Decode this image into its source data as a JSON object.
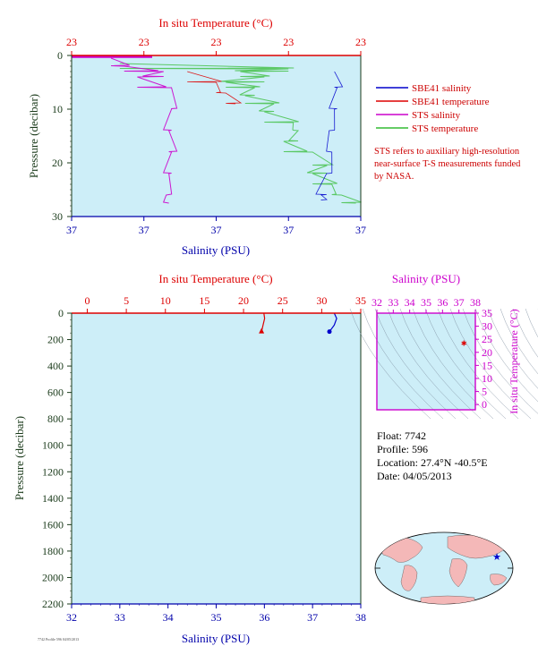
{
  "top_panel": {
    "temp_axis_title": "In situ Temperature (°C)",
    "temp_ticks": [
      "23",
      "23",
      "23",
      "23",
      "23"
    ],
    "sal_axis_title": "Salinity (PSU)",
    "sal_ticks": [
      "37",
      "37",
      "37",
      "37",
      "37"
    ],
    "pressure_axis_title": "Pressure (decibar)",
    "pressure_ticks": [
      "0",
      "10",
      "20",
      "30"
    ],
    "legend": [
      {
        "label": "SBE41 salinity",
        "color": "#0000cc"
      },
      {
        "label": "SBE41 temperature",
        "color": "#dd0000"
      },
      {
        "label": "STS salinity",
        "color": "#cc00cc"
      },
      {
        "label": "STS temperature",
        "color": "#33bb33"
      }
    ],
    "note": "STS refers to auxiliary high-resolution near-surface T-S measurements funded by NASA."
  },
  "bottom_panel": {
    "temp_axis_title": "In situ Temperature (°C)",
    "temp_ticks": [
      "0",
      "5",
      "10",
      "15",
      "20",
      "25",
      "30",
      "35"
    ],
    "sal_axis_title": "Salinity (PSU)",
    "sal_ticks": [
      "32",
      "33",
      "34",
      "35",
      "36",
      "37",
      "38"
    ],
    "pressure_axis_title": "Pressure (decibar)",
    "pressure_ticks": [
      "0",
      "200",
      "400",
      "600",
      "800",
      "1000",
      "1200",
      "1400",
      "1600",
      "1800",
      "2000",
      "2200"
    ]
  },
  "ts_panel": {
    "sal_axis_title": "Salinity (PSU)",
    "sal_ticks": [
      "32",
      "33",
      "34",
      "35",
      "36",
      "37",
      "38"
    ],
    "temp_axis_title": "In situ Temperature (°C)",
    "temp_ticks": [
      "0",
      "5",
      "10",
      "15",
      "20",
      "25",
      "30",
      "35"
    ]
  },
  "info": {
    "float": "Float:  7742",
    "profile": "Profile:  596",
    "location": "Location:  27.4°N  -40.5°E",
    "date": "Date:  04/05/2013"
  },
  "footer_tiny": "7742 Profile 596 04/05/2013",
  "colors": {
    "plot_bg": "#cdeef8",
    "temp_axis": "#dd0000",
    "sal_axis": "#0000aa",
    "pressure_axis": "#1a3a1a",
    "ts_axis": "#cc00cc",
    "map_land": "#f4b8b8",
    "map_ocean": "#cdeef8"
  },
  "chart_data": [
    {
      "type": "line",
      "panel": "top",
      "x_temp_range": [
        22.9,
        23.5
      ],
      "x_sal_range": [
        36.98,
        37.09
      ],
      "ylim": [
        30,
        0
      ],
      "series": [
        {
          "name": "STS temperature",
          "var": "temperature",
          "points": [
            [
              23.0,
              1.5
            ],
            [
              23.35,
              2.5
            ],
            [
              23.25,
              3.0
            ],
            [
              23.3,
              4.0
            ],
            [
              23.22,
              5.0
            ],
            [
              23.28,
              6.0
            ],
            [
              23.26,
              7.5
            ],
            [
              23.32,
              9.0
            ],
            [
              23.3,
              10.5
            ],
            [
              23.36,
              12.5
            ],
            [
              23.37,
              14.0
            ],
            [
              23.34,
              16.0
            ],
            [
              23.4,
              18.0
            ],
            [
              23.43,
              20.5
            ],
            [
              23.4,
              22.0
            ],
            [
              23.44,
              24.0
            ],
            [
              23.46,
              26.0
            ],
            [
              23.49,
              27.5
            ]
          ]
        },
        {
          "name": "STS salinity",
          "var": "salinity",
          "points": [
            [
              36.995,
              0.5
            ],
            [
              37.0,
              2.0
            ],
            [
              37.015,
              3.0
            ],
            [
              37.005,
              4.0
            ],
            [
              37.018,
              6.0
            ],
            [
              37.018,
              10.0
            ],
            [
              37.017,
              14.0
            ],
            [
              37.018,
              18.0
            ],
            [
              37.017,
              22.0
            ],
            [
              37.016,
              26.0
            ],
            [
              37.017,
              27.5
            ]
          ]
        },
        {
          "name": "SBE41 salinity",
          "var": "salinity",
          "points": [
            [
              37.08,
              3.0
            ],
            [
              37.081,
              6.0
            ],
            [
              37.08,
              10.0
            ],
            [
              37.078,
              14.0
            ],
            [
              37.079,
              18.0
            ],
            [
              37.077,
              22.0
            ],
            [
              37.075,
              26.0
            ],
            [
              37.075,
              27.0
            ]
          ]
        },
        {
          "name": "SBE41 temperature",
          "var": "temperature",
          "points": [
            [
              23.14,
              3.0
            ],
            [
              23.2,
              5.0
            ],
            [
              23.22,
              7.0
            ],
            [
              23.24,
              9.0
            ]
          ]
        }
      ]
    },
    {
      "type": "line",
      "panel": "bottom",
      "x_temp_range": [
        -2,
        35
      ],
      "x_sal_range": [
        32,
        38
      ],
      "ylim": [
        2200,
        0
      ],
      "series": [
        {
          "name": "SBE41 temperature",
          "var": "temperature",
          "points": [
            [
              22.6,
              0
            ],
            [
              22.7,
              40
            ],
            [
              22.5,
              90
            ],
            [
              22.3,
              140
            ]
          ]
        },
        {
          "name": "SBE41 salinity",
          "var": "salinity",
          "points": [
            [
              37.45,
              0
            ],
            [
              37.5,
              40
            ],
            [
              37.45,
              90
            ],
            [
              37.35,
              140
            ]
          ]
        }
      ]
    },
    {
      "type": "scatter",
      "panel": "ts",
      "xlim": [
        32,
        38
      ],
      "ylim": [
        -2,
        35
      ],
      "points": [
        [
          37.3,
          23.5
        ]
      ]
    }
  ]
}
